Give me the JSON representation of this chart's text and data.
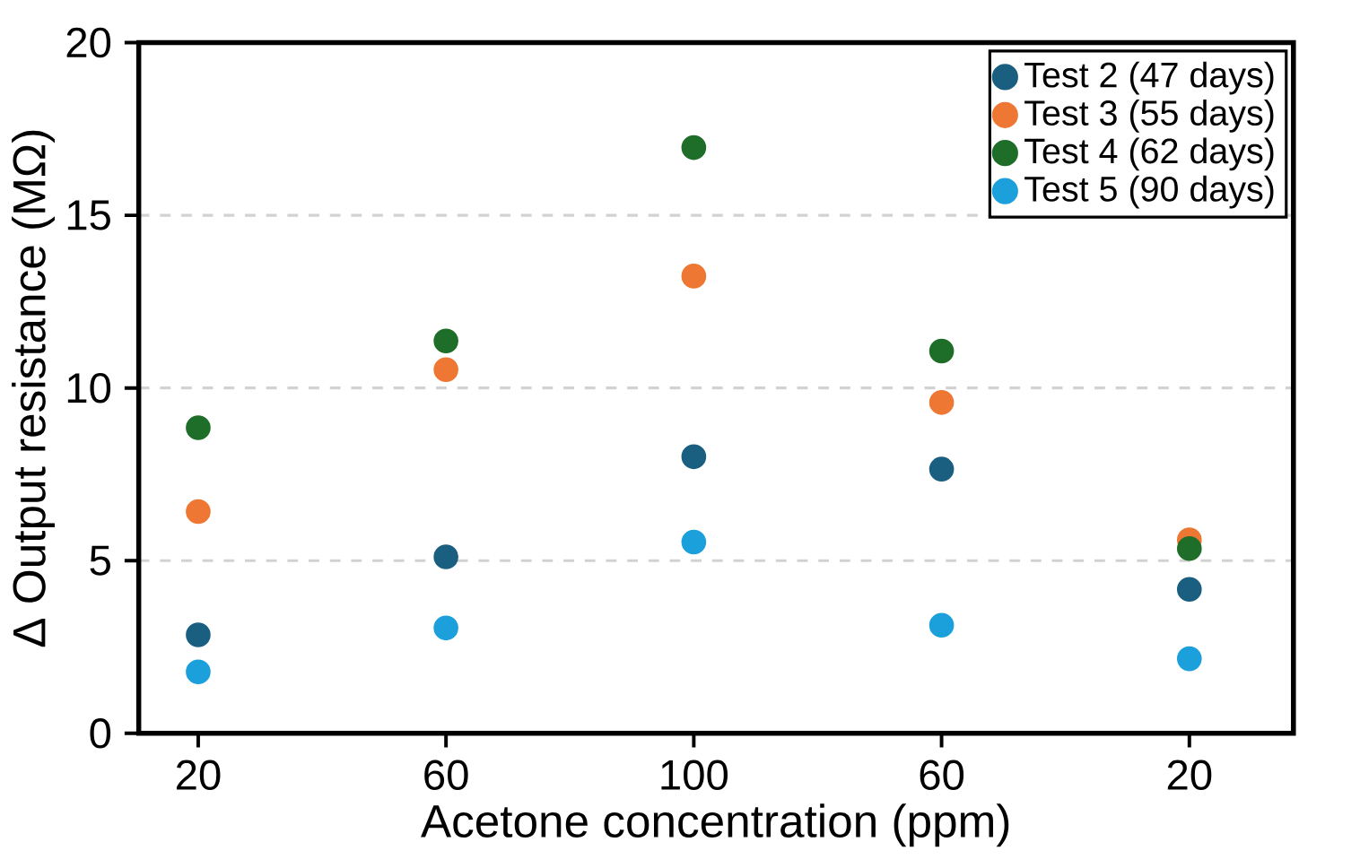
{
  "chart_data": {
    "type": "scatter",
    "xlabel": "Acetone concentration (ppm)",
    "ylabel": "Δ Output resistance (MΩ)",
    "categories": [
      "20",
      "60",
      "100",
      "60",
      "20"
    ],
    "series": [
      {
        "name": "Test 2 (47 days)",
        "color": "#1a5f80",
        "values": [
          2.85,
          5.11,
          8.01,
          7.65,
          4.17
        ]
      },
      {
        "name": "Test 3 (55 days)",
        "color": "#ee7733",
        "values": [
          6.42,
          10.53,
          13.24,
          9.58,
          5.6
        ]
      },
      {
        "name": "Test 4 (62 days)",
        "color": "#1e6e2a",
        "values": [
          8.85,
          11.36,
          16.96,
          11.07,
          5.35
        ]
      },
      {
        "name": "Test 5 (90 days)",
        "color": "#1ca0dc",
        "values": [
          1.78,
          3.05,
          5.54,
          3.13,
          2.16
        ]
      }
    ],
    "ylim": [
      0,
      20
    ],
    "yticks": [
      0,
      5,
      10,
      15,
      20
    ],
    "grid": "y",
    "legend": "top right",
    "marker": "circle"
  }
}
